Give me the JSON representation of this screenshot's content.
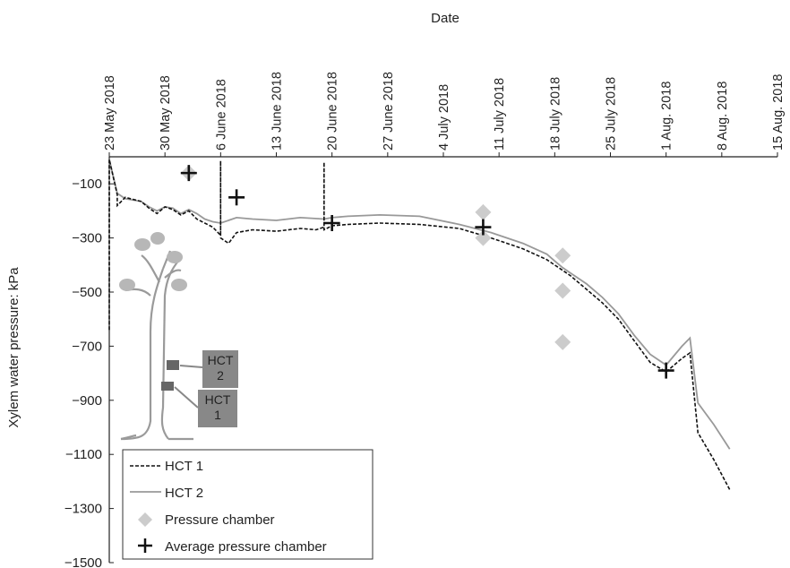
{
  "chart_data": {
    "type": "line",
    "xlabel": "Date",
    "ylabel": "Xylem water pressure: kPa",
    "xlim": [
      "2018-05-23",
      "2018-08-15"
    ],
    "ylim": [
      -1500,
      0
    ],
    "x_ticks": [
      "23 May 2018",
      "30 May 2018",
      "6 June 2018",
      "13 June 2018",
      "20 June 2018",
      "27 June 2018",
      "4 July 2018",
      "11 July 2018",
      "18 July 2018",
      "25 July 2018",
      "1 Aug. 2018",
      "8 Aug. 2018",
      "15 Aug. 2018"
    ],
    "y_ticks": [
      -100,
      -300,
      -500,
      -700,
      -900,
      -1100,
      -1300,
      -1500
    ],
    "legend_position": "bottom-left",
    "series": [
      {
        "name": "HCT 1",
        "style": "dashed",
        "color": "#111111",
        "x": [
          "2018-05-23",
          "2018-05-23",
          "2018-05-24",
          "2018-05-24",
          "2018-05-25",
          "2018-05-27",
          "2018-05-28",
          "2018-05-29",
          "2018-05-30",
          "2018-05-31",
          "2018-06-01",
          "2018-06-02",
          "2018-06-03",
          "2018-06-04",
          "2018-06-05",
          "2018-06-06",
          "2018-06-06",
          "2018-06-06",
          "2018-06-07",
          "2018-06-08",
          "2018-06-10",
          "2018-06-13",
          "2018-06-16",
          "2018-06-18",
          "2018-06-19",
          "2018-06-19",
          "2018-06-19",
          "2018-06-20",
          "2018-06-22",
          "2018-06-26",
          "2018-07-01",
          "2018-07-06",
          "2018-07-10",
          "2018-07-12",
          "2018-07-14",
          "2018-07-17",
          "2018-07-18",
          "2018-07-19",
          "2018-07-20",
          "2018-07-22",
          "2018-07-24",
          "2018-07-26",
          "2018-07-28",
          "2018-07-30",
          "2018-08-01",
          "2018-08-03",
          "2018-08-04",
          "2018-08-05",
          "2018-08-07",
          "2018-08-09"
        ],
        "y": [
          -640,
          -10,
          -140,
          -180,
          -150,
          -165,
          -190,
          -210,
          -185,
          -195,
          -215,
          -200,
          -230,
          -245,
          -260,
          -290,
          -15,
          -300,
          -320,
          -280,
          -270,
          -275,
          -265,
          -270,
          -260,
          -20,
          -270,
          -255,
          -250,
          -245,
          -250,
          -265,
          -300,
          -320,
          -340,
          -380,
          -400,
          -420,
          -440,
          -490,
          -540,
          -600,
          -680,
          -760,
          -795,
          -745,
          -725,
          -1020,
          -1120,
          -1230
        ]
      },
      {
        "name": "HCT 2",
        "style": "solid",
        "color": "#999999",
        "x": [
          "2018-05-23",
          "2018-05-23",
          "2018-05-24",
          "2018-05-25",
          "2018-05-27",
          "2018-05-28",
          "2018-05-29",
          "2018-05-30",
          "2018-05-31",
          "2018-06-01",
          "2018-06-02",
          "2018-06-03",
          "2018-06-04",
          "2018-06-05",
          "2018-06-06",
          "2018-06-08",
          "2018-06-10",
          "2018-06-13",
          "2018-06-16",
          "2018-06-19",
          "2018-06-20",
          "2018-06-22",
          "2018-06-26",
          "2018-07-01",
          "2018-07-06",
          "2018-07-10",
          "2018-07-12",
          "2018-07-14",
          "2018-07-17",
          "2018-07-18",
          "2018-07-19",
          "2018-07-20",
          "2018-07-22",
          "2018-07-24",
          "2018-07-26",
          "2018-07-28",
          "2018-07-30",
          "2018-08-01",
          "2018-08-03",
          "2018-08-04",
          "2018-08-05",
          "2018-08-07",
          "2018-08-09"
        ],
        "y": [
          -420,
          -10,
          -135,
          -155,
          -165,
          -185,
          -200,
          -185,
          -190,
          -210,
          -195,
          -210,
          -230,
          -240,
          -245,
          -225,
          -230,
          -235,
          -225,
          -230,
          -225,
          -220,
          -215,
          -220,
          -250,
          -280,
          -300,
          -320,
          -360,
          -385,
          -410,
          -430,
          -470,
          -520,
          -580,
          -660,
          -730,
          -770,
          -700,
          -670,
          -910,
          -990,
          -1080
        ]
      }
    ],
    "pressure_chamber": {
      "name": "Pressure chamber",
      "points": [
        {
          "x": "2018-06-02",
          "y": -60
        },
        {
          "x": "2018-07-09",
          "y": -205
        },
        {
          "x": "2018-07-09",
          "y": -300
        },
        {
          "x": "2018-07-19",
          "y": -365
        },
        {
          "x": "2018-07-19",
          "y": -495
        },
        {
          "x": "2018-07-19",
          "y": -685
        }
      ]
    },
    "average_pressure_chamber": {
      "name": "Average pressure chamber",
      "points": [
        {
          "x": "2018-06-02",
          "y": -60
        },
        {
          "x": "2018-06-08",
          "y": -150
        },
        {
          "x": "2018-06-20",
          "y": -245
        },
        {
          "x": "2018-07-09",
          "y": -260
        },
        {
          "x": "2018-08-01",
          "y": -790
        }
      ]
    },
    "annotations": {
      "hct2_label": "HCT\n2",
      "hct1_label": "HCT\n1"
    }
  }
}
